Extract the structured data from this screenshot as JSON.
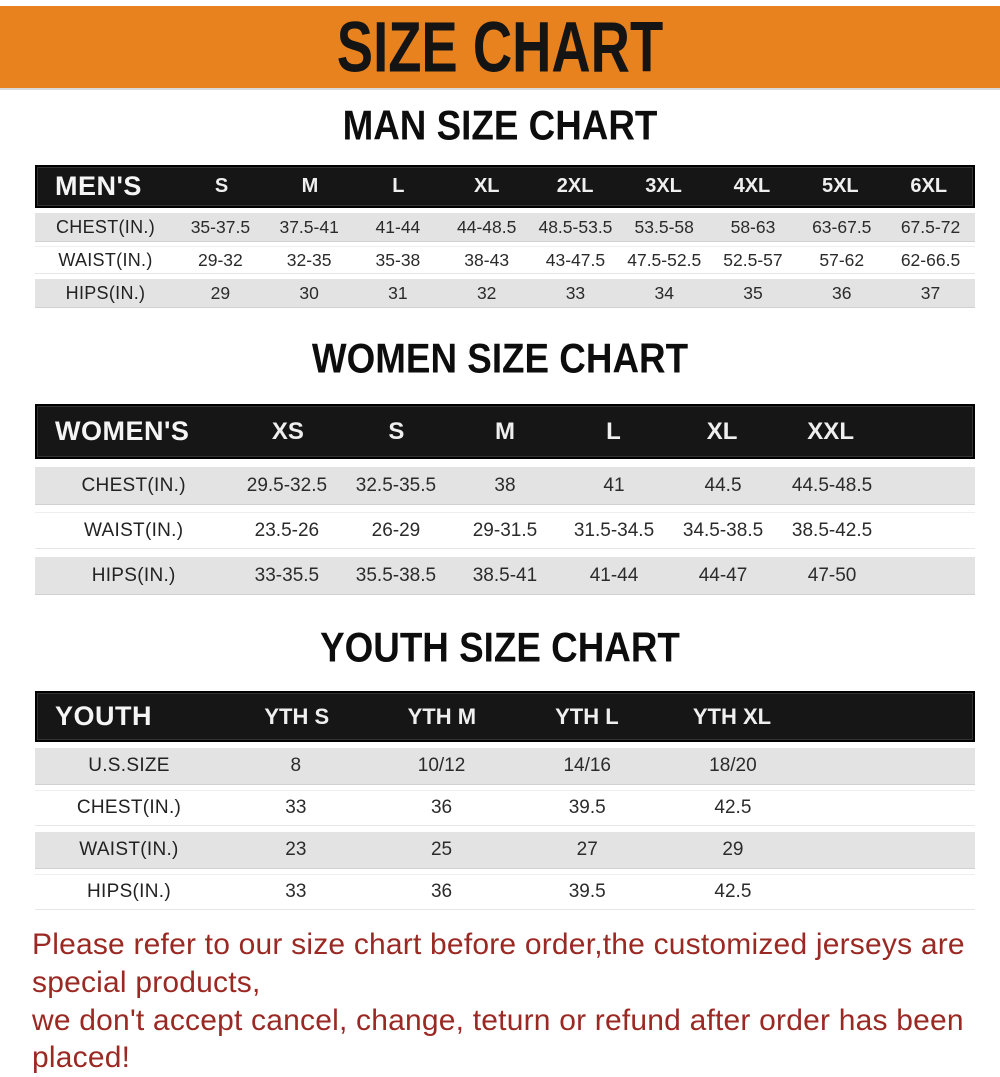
{
  "banner": {
    "title": "SIZE CHART",
    "bg_color": "#E8821E",
    "text_color": "#141414"
  },
  "sections": [
    {
      "id": "men",
      "heading": "MAN SIZE CHART",
      "header_label": "MEN'S",
      "columns": [
        "S",
        "M",
        "L",
        "XL",
        "2XL",
        "3XL",
        "4XL",
        "5XL",
        "6XL"
      ],
      "rows": [
        {
          "label": "CHEST(IN.)",
          "values": [
            "35-37.5",
            "37.5-41",
            "41-44",
            "44-48.5",
            "48.5-53.5",
            "53.5-58",
            "58-63",
            "63-67.5",
            "67.5-72"
          ]
        },
        {
          "label": "WAIST(IN.)",
          "values": [
            "29-32",
            "32-35",
            "35-38",
            "38-43",
            "43-47.5",
            "47.5-52.5",
            "52.5-57",
            "57-62",
            "62-66.5"
          ]
        },
        {
          "label": "HIPS(IN.)",
          "values": [
            "29",
            "30",
            "31",
            "32",
            "33",
            "34",
            "35",
            "36",
            "37"
          ]
        }
      ]
    },
    {
      "id": "women",
      "heading": "WOMEN SIZE CHART",
      "header_label": "WOMEN'S",
      "columns": [
        "XS",
        "S",
        "M",
        "L",
        "XL",
        "XXL"
      ],
      "rows": [
        {
          "label": "CHEST(IN.)",
          "values": [
            "29.5-32.5",
            "32.5-35.5",
            "38",
            "41",
            "44.5",
            "44.5-48.5"
          ]
        },
        {
          "label": "WAIST(IN.)",
          "values": [
            "23.5-26",
            "26-29",
            "29-31.5",
            "31.5-34.5",
            "34.5-38.5",
            "38.5-42.5"
          ]
        },
        {
          "label": "HIPS(IN.)",
          "values": [
            "33-35.5",
            "35.5-38.5",
            "38.5-41",
            "41-44",
            "44-47",
            "47-50"
          ]
        }
      ]
    },
    {
      "id": "youth",
      "heading": "YOUTH SIZE CHART",
      "header_label": "YOUTH",
      "columns": [
        "YTH S",
        "YTH M",
        "YTH L",
        "YTH XL"
      ],
      "rows": [
        {
          "label": "U.S.SIZE",
          "values": [
            "8",
            "10/12",
            "14/16",
            "18/20"
          ]
        },
        {
          "label": "CHEST(IN.)",
          "values": [
            "33",
            "36",
            "39.5",
            "42.5"
          ]
        },
        {
          "label": "WAIST(IN.)",
          "values": [
            "23",
            "25",
            "27",
            "29"
          ]
        },
        {
          "label": "HIPS(IN.)",
          "values": [
            "33",
            "36",
            "39.5",
            "42.5"
          ]
        }
      ]
    }
  ],
  "footer": {
    "line1": "Please refer to our size chart before order,the customized jerseys are special products,",
    "line2": "we don't accept cancel, change, teturn or refund after order has been placed!",
    "text_color": "#9B2923"
  },
  "colors": {
    "header_bar_bg": "#161616",
    "header_bar_text": "#FFFFFF",
    "row_stripe": "#E3E3E3",
    "table_text": "#2B2B2B"
  }
}
